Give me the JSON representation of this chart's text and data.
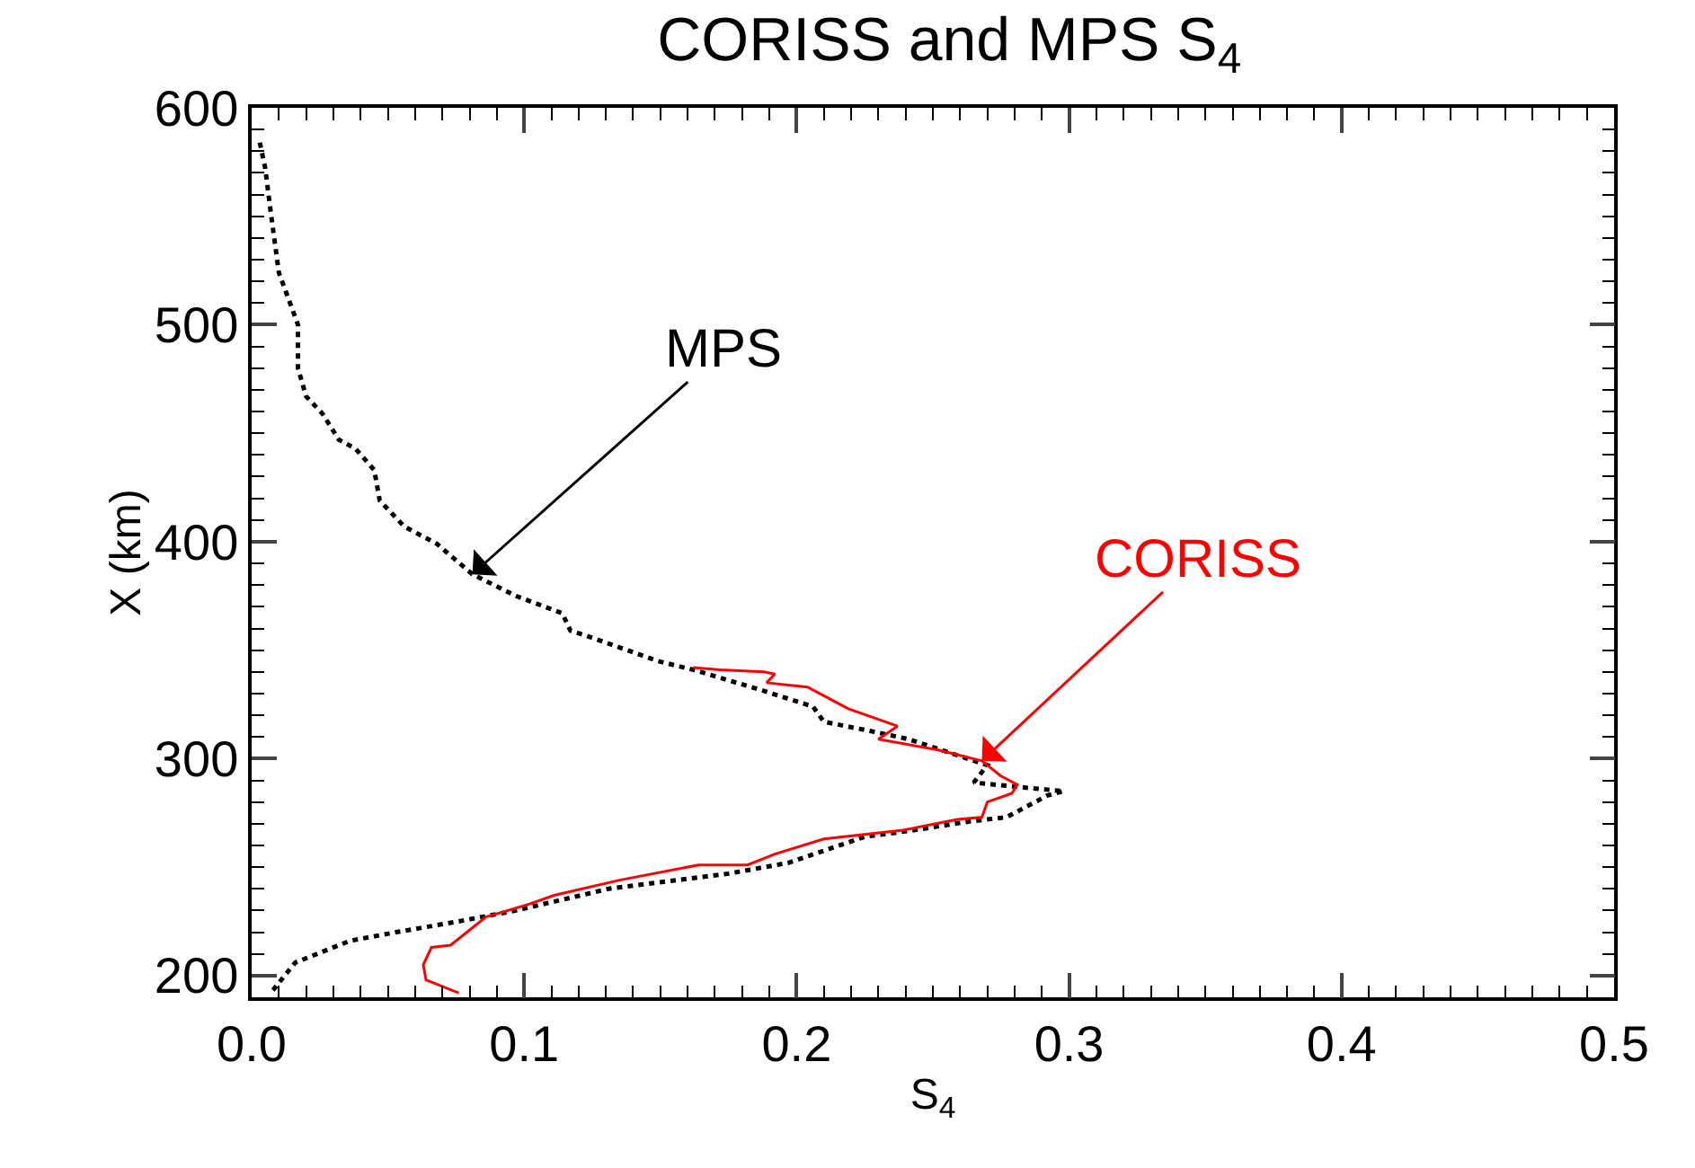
{
  "chart_data": {
    "type": "line",
    "title": "CORISS and MPS S$_{4}$",
    "xlabel": "S$_{4}$",
    "ylabel": "X (km)",
    "xlim": [
      0,
      0.5
    ],
    "xticks": [
      {
        "value": 0,
        "label": "0.0"
      },
      0.1,
      0.2,
      0.3,
      0.4,
      0.5
    ],
    "ylim": [
      190,
      600
    ],
    "yticks": [
      200,
      300,
      400,
      500,
      600
    ],
    "grid": false,
    "series": [
      {
        "color": "#000000",
        "line_style": "dotted",
        "x": [
          0.003,
          0.005,
          0.007,
          0.01,
          0.017,
          0.017,
          0.02,
          0.026,
          0.032,
          0.038,
          0.045,
          0.047,
          0.056,
          0.068,
          0.081,
          0.097,
          0.114,
          0.117,
          0.122,
          0.149,
          0.162,
          0.186,
          0.206,
          0.21,
          0.23,
          0.241,
          0.27,
          0.265,
          0.281,
          0.298,
          0.292,
          0.277,
          0.263,
          0.243,
          0.225,
          0.197,
          0.175,
          0.131,
          0.097,
          0.076,
          0.053,
          0.036,
          0.016,
          0.007
        ],
        "values": [
          584,
          572,
          552,
          524,
          500,
          480,
          467,
          459,
          447,
          443,
          433,
          419,
          407,
          399,
          385,
          375,
          367,
          359,
          357,
          345,
          341,
          332,
          324,
          317,
          312,
          309,
          297,
          289,
          287,
          285,
          283,
          273,
          271,
          267,
          264,
          252,
          247,
          240,
          230,
          225,
          220,
          216,
          206,
          192
        ]
      },
      {
        "color": "#ff0000",
        "line_style": "solid",
        "x": [
          0.162,
          0.172,
          0.188,
          0.192,
          0.189,
          0.204,
          0.21,
          0.219,
          0.237,
          0.23,
          0.252,
          0.268,
          0.275,
          0.281,
          0.279,
          0.27,
          0.268,
          0.259,
          0.239,
          0.21,
          0.192,
          0.182,
          0.164,
          0.135,
          0.111,
          0.102,
          0.086,
          0.073,
          0.066,
          0.063,
          0.064,
          0.076
        ],
        "values": [
          342,
          341,
          340,
          339,
          335,
          333,
          329,
          323,
          315,
          309,
          304,
          299,
          292,
          288,
          284,
          280,
          273,
          272,
          267,
          263,
          256,
          251,
          251,
          244,
          237,
          233,
          227,
          214,
          213,
          205,
          198,
          192
        ]
      }
    ],
    "annotations": [
      {
        "text": "MPS",
        "x": 0.081,
        "y": 385
      },
      {
        "text": "CORISS",
        "x": 0.268,
        "y": 299
      }
    ]
  }
}
